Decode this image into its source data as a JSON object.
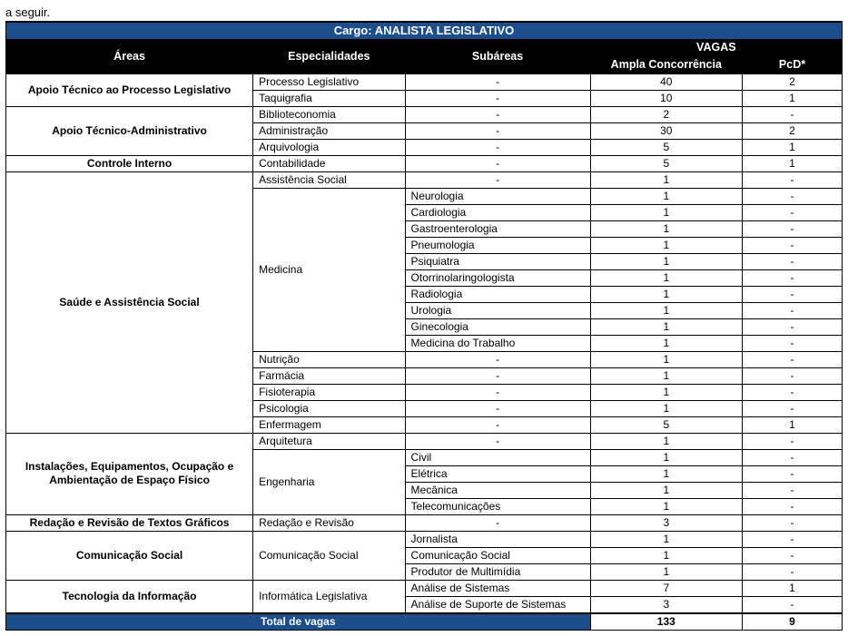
{
  "top_fragment": "a seguir.",
  "cargo_label": "Cargo: ANALISTA LEGISLATIVO",
  "headers": {
    "areas": "Áreas",
    "especialidades": "Especialidades",
    "subareas": "Subáreas",
    "vagas": "VAGAS",
    "ampla": "Ampla Concorrência",
    "pcd": "PcD*"
  },
  "dash": "-",
  "totals": {
    "label": "Total de vagas",
    "ampla": "133",
    "pcd": "9"
  },
  "rows": [
    {
      "area": "Apoio Técnico ao Processo Legislativo",
      "area_rowspan": 2,
      "esp": "Processo Legislativo",
      "sub": "-",
      "ampla": "40",
      "pcd": "2"
    },
    {
      "esp": "Taquigrafia",
      "sub": "-",
      "ampla": "10",
      "pcd": "1"
    },
    {
      "area": "Apoio Técnico-Administrativo",
      "area_rowspan": 3,
      "esp": "Biblioteconomia",
      "sub": "-",
      "ampla": "2",
      "pcd": "-"
    },
    {
      "esp": "Administração",
      "sub": "-",
      "ampla": "30",
      "pcd": "2"
    },
    {
      "esp": "Arquivologia",
      "sub": "-",
      "ampla": "5",
      "pcd": "1"
    },
    {
      "area": "Controle Interno",
      "area_rowspan": 1,
      "esp": "Contabilidade",
      "sub": "-",
      "ampla": "5",
      "pcd": "1"
    },
    {
      "area": "Saúde e Assistência Social",
      "area_rowspan": 16,
      "esp": "Assistência Social",
      "sub": "-",
      "ampla": "1",
      "pcd": "-"
    },
    {
      "esp": "Medicina",
      "esp_rowspan": 10,
      "sub": "Neurologia",
      "ampla": "1",
      "pcd": "-"
    },
    {
      "sub": "Cardiologia",
      "ampla": "1",
      "pcd": "-"
    },
    {
      "sub": "Gastroenterologia",
      "ampla": "1",
      "pcd": "-"
    },
    {
      "sub": "Pneumologia",
      "ampla": "1",
      "pcd": "-"
    },
    {
      "sub": "Psiquiatra",
      "ampla": "1",
      "pcd": "-"
    },
    {
      "sub": "Otorrinolaringologista",
      "ampla": "1",
      "pcd": "-"
    },
    {
      "sub": "Radiologia",
      "ampla": "1",
      "pcd": "-"
    },
    {
      "sub": "Urologia",
      "ampla": "1",
      "pcd": "-"
    },
    {
      "sub": "Ginecologia",
      "ampla": "1",
      "pcd": "-"
    },
    {
      "sub": "Medicina do Trabalho",
      "ampla": "1",
      "pcd": "-"
    },
    {
      "esp": "Nutrição",
      "sub": "-",
      "ampla": "1",
      "pcd": "-"
    },
    {
      "esp": "Farmácia",
      "sub": "-",
      "ampla": "1",
      "pcd": "-"
    },
    {
      "esp": "Fisioterapia",
      "sub": "-",
      "ampla": "1",
      "pcd": "-"
    },
    {
      "esp": "Psicologia",
      "sub": "-",
      "ampla": "1",
      "pcd": "-"
    },
    {
      "esp": "Enfermagem",
      "sub": "-",
      "ampla": "5",
      "pcd": "1"
    },
    {
      "area": "Instalações, Equipamentos, Ocupação e Ambientação de Espaço Físico",
      "area_rowspan": 5,
      "esp": "Arquitetura",
      "sub": "-",
      "ampla": "1",
      "pcd": "-"
    },
    {
      "esp": "Engenharia",
      "esp_rowspan": 4,
      "sub": "Civil",
      "ampla": "1",
      "pcd": "-"
    },
    {
      "sub": "Elétrica",
      "ampla": "1",
      "pcd": "-"
    },
    {
      "sub": "Mecânica",
      "ampla": "1",
      "pcd": "-"
    },
    {
      "sub": "Telecomunicações",
      "ampla": "1",
      "pcd": "-"
    },
    {
      "area": "Redação e Revisão de Textos Gráficos",
      "area_rowspan": 1,
      "esp": "Redação e Revisão",
      "sub": "-",
      "ampla": "3",
      "pcd": "-"
    },
    {
      "area": "Comunicação Social",
      "area_rowspan": 3,
      "esp": "Comunicação Social",
      "esp_rowspan": 3,
      "sub": "Jornalista",
      "ampla": "1",
      "pcd": "-"
    },
    {
      "sub": "Comunicação Social",
      "ampla": "1",
      "pcd": "-"
    },
    {
      "sub": "Produtor de Multimídia",
      "ampla": "1",
      "pcd": "-"
    },
    {
      "area": "Tecnologia da Informação",
      "area_rowspan": 2,
      "esp": "Informática Legislativa",
      "esp_rowspan": 2,
      "sub": "Análise de Sistemas",
      "ampla": "7",
      "pcd": "1"
    },
    {
      "sub": "Análise de Suporte de Sistemas",
      "ampla": "3",
      "pcd": "-"
    }
  ]
}
